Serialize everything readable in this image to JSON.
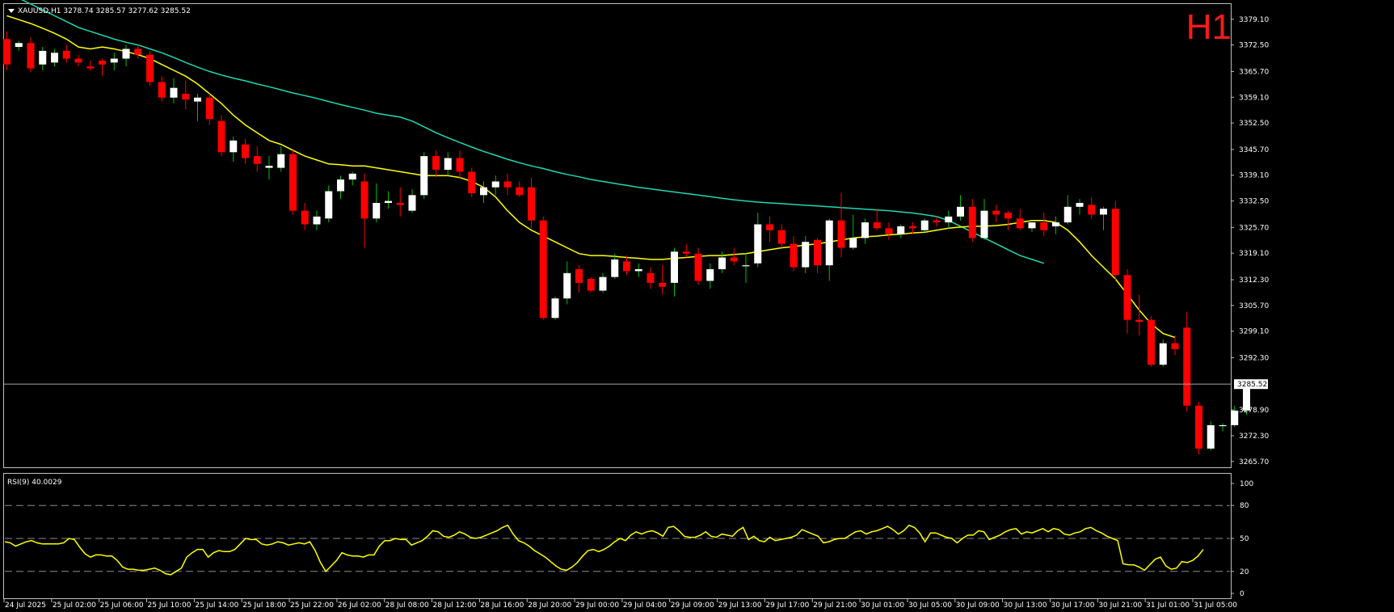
{
  "header": {
    "symbol_line": "XAUUSD,H1  3278.74 3285.57 3277.62 3285.52",
    "timeframe_badge": "H1",
    "current_price_label": "3285.52"
  },
  "colors": {
    "background": "#000000",
    "bull_body": "#ffffff",
    "bear_body": "#ff0000",
    "wick_bull": "#00c000",
    "wick_bear": "#ff0000",
    "ma_fast": "#ffff00",
    "ma_slow": "#20d8b0",
    "rsi": "#ffff00",
    "grid_dash": "#8c8c8c",
    "frame": "#c0c0c0",
    "badge": "#ff1a1a"
  },
  "chart_data": [
    {
      "type": "candlestick",
      "symbol": "XAUUSD",
      "timeframe": "H1",
      "ohlc_last": {
        "open": 3278.74,
        "high": 3285.57,
        "low": 3277.62,
        "close": 3285.52
      },
      "ylim": [
        3264.2,
        3383.0
      ],
      "y_ticks": [
        "3379.10",
        "3372.50",
        "3365.70",
        "3359.10",
        "3352.50",
        "3345.70",
        "3339.10",
        "3332.50",
        "3325.70",
        "3319.10",
        "3312.30",
        "3305.70",
        "3299.10",
        "3292.30",
        "3285.52",
        "3278.90",
        "3272.30",
        "3265.70"
      ],
      "current_price": 3285.52,
      "x_tick_labels": [
        "24 Jul 2025",
        "25 Jul 02:00",
        "25 Jul 06:00",
        "25 Jul 10:00",
        "25 Jul 14:00",
        "25 Jul 18:00",
        "25 Jul 22:00",
        "26 Jul 02:00",
        "28 Jul 08:00",
        "28 Jul 12:00",
        "28 Jul 16:00",
        "28 Jul 20:00",
        "29 Jul 00:00",
        "29 Jul 04:00",
        "29 Jul 09:00",
        "29 Jul 13:00",
        "29 Jul 17:00",
        "29 Jul 21:00",
        "30 Jul 01:00",
        "30 Jul 05:00",
        "30 Jul 09:00",
        "30 Jul 13:00",
        "30 Jul 17:00",
        "30 Jul 21:00",
        "31 Jul 01:00",
        "31 Jul 05:00"
      ],
      "candles": [
        [
          3374.0,
          3376.0,
          3366.0,
          3367.5
        ],
        [
          3372.0,
          3373.5,
          3371.0,
          3373.0
        ],
        [
          3373.0,
          3374.5,
          3365.5,
          3366.5
        ],
        [
          3367.5,
          3372.0,
          3366.0,
          3371.0
        ],
        [
          3368.0,
          3371.5,
          3367.0,
          3370.5
        ],
        [
          3371.0,
          3372.5,
          3368.0,
          3369.0
        ],
        [
          3369.0,
          3370.0,
          3367.0,
          3368.0
        ],
        [
          3367.0,
          3368.5,
          3366.0,
          3366.5
        ],
        [
          3368.5,
          3369.0,
          3364.5,
          3367.5
        ],
        [
          3368.0,
          3370.5,
          3366.0,
          3369.0
        ],
        [
          3369.0,
          3372.5,
          3367.0,
          3371.5
        ],
        [
          3371.5,
          3372.5,
          3369.0,
          3370.0
        ],
        [
          3370.0,
          3371.0,
          3362.0,
          3363.0
        ],
        [
          3363.0,
          3364.5,
          3358.0,
          3359.0
        ],
        [
          3359.0,
          3364.0,
          3357.5,
          3361.5
        ],
        [
          3360.0,
          3363.5,
          3356.0,
          3358.5
        ],
        [
          3358.0,
          3360.0,
          3353.0,
          3359.0
        ],
        [
          3359.0,
          3360.0,
          3352.0,
          3353.5
        ],
        [
          3353.0,
          3354.5,
          3344.0,
          3345.0
        ],
        [
          3345.0,
          3349.0,
          3342.5,
          3348.0
        ],
        [
          3347.0,
          3348.5,
          3342.0,
          3343.5
        ],
        [
          3344.0,
          3346.5,
          3340.0,
          3342.0
        ],
        [
          3341.0,
          3344.0,
          3338.0,
          3341.5
        ],
        [
          3341.0,
          3346.5,
          3340.0,
          3344.5
        ],
        [
          3344.5,
          3345.5,
          3329.0,
          3330.0
        ],
        [
          3330.0,
          3332.0,
          3325.0,
          3326.5
        ],
        [
          3326.5,
          3330.0,
          3325.0,
          3328.5
        ],
        [
          3328.0,
          3336.5,
          3327.0,
          3335.0
        ],
        [
          3335.0,
          3339.0,
          3333.0,
          3338.0
        ],
        [
          3338.0,
          3340.0,
          3336.5,
          3339.5
        ],
        [
          3337.5,
          3339.5,
          3320.5,
          3328.0
        ],
        [
          3328.0,
          3337.0,
          3327.0,
          3332.0
        ],
        [
          3332.0,
          3335.0,
          3330.5,
          3332.5
        ],
        [
          3332.0,
          3336.0,
          3328.5,
          3331.5
        ],
        [
          3330.0,
          3335.5,
          3329.5,
          3334.0
        ],
        [
          3334.0,
          3345.0,
          3333.0,
          3344.0
        ],
        [
          3344.0,
          3345.5,
          3338.5,
          3340.5
        ],
        [
          3340.5,
          3345.0,
          3339.0,
          3343.5
        ],
        [
          3343.5,
          3345.5,
          3338.5,
          3340.0
        ],
        [
          3340.0,
          3341.0,
          3333.5,
          3334.5
        ],
        [
          3334.0,
          3337.5,
          3332.0,
          3336.0
        ],
        [
          3336.0,
          3339.0,
          3334.0,
          3337.5
        ],
        [
          3337.5,
          3339.5,
          3334.0,
          3336.0
        ],
        [
          3336.0,
          3337.5,
          3333.5,
          3334.0
        ],
        [
          3336.0,
          3338.5,
          3325.5,
          3327.5
        ],
        [
          3327.5,
          3328.5,
          3302.0,
          3302.5
        ],
        [
          3302.5,
          3308.0,
          3302.0,
          3307.5
        ],
        [
          3307.5,
          3317.0,
          3306.0,
          3314.0
        ],
        [
          3315.0,
          3316.0,
          3309.0,
          3311.5
        ],
        [
          3312.5,
          3313.0,
          3309.0,
          3309.5
        ],
        [
          3309.5,
          3314.0,
          3309.0,
          3313.0
        ],
        [
          3313.0,
          3319.0,
          3312.5,
          3317.5
        ],
        [
          3317.0,
          3318.5,
          3313.5,
          3314.5
        ],
        [
          3314.5,
          3316.5,
          3313.0,
          3315.0
        ],
        [
          3314.0,
          3315.5,
          3310.0,
          3311.5
        ],
        [
          3311.5,
          3316.0,
          3308.5,
          3310.5
        ],
        [
          3311.5,
          3320.5,
          3308.0,
          3319.5
        ],
        [
          3319.5,
          3321.5,
          3318.0,
          3319.0
        ],
        [
          3319.0,
          3320.5,
          3311.0,
          3312.0
        ],
        [
          3312.0,
          3316.5,
          3310.0,
          3315.0
        ],
        [
          3315.0,
          3319.5,
          3314.0,
          3318.0
        ],
        [
          3318.0,
          3320.5,
          3316.0,
          3317.0
        ],
        [
          3316.0,
          3319.0,
          3311.5,
          3316.0
        ],
        [
          3316.5,
          3329.5,
          3315.5,
          3326.5
        ],
        [
          3326.5,
          3328.5,
          3322.0,
          3325.0
        ],
        [
          3325.0,
          3326.5,
          3320.5,
          3321.5
        ],
        [
          3321.5,
          3323.5,
          3314.5,
          3315.5
        ],
        [
          3315.5,
          3323.5,
          3314.0,
          3322.0
        ],
        [
          3322.5,
          3323.0,
          3314.0,
          3316.0
        ],
        [
          3316.0,
          3328.0,
          3312.0,
          3327.5
        ],
        [
          3327.5,
          3334.5,
          3318.0,
          3320.5
        ],
        [
          3320.5,
          3329.0,
          3320.0,
          3323.0
        ],
        [
          3323.0,
          3328.0,
          3321.5,
          3327.0
        ],
        [
          3327.0,
          3330.5,
          3325.0,
          3325.5
        ],
        [
          3325.5,
          3327.0,
          3322.5,
          3324.0
        ],
        [
          3324.0,
          3326.5,
          3323.0,
          3326.0
        ],
        [
          3326.0,
          3327.0,
          3324.0,
          3325.5
        ],
        [
          3325.0,
          3328.0,
          3324.5,
          3327.5
        ],
        [
          3327.5,
          3328.5,
          3326.0,
          3327.0
        ],
        [
          3327.0,
          3330.0,
          3325.5,
          3328.5
        ],
        [
          3328.5,
          3334.0,
          3327.5,
          3331.0
        ],
        [
          3331.0,
          3333.0,
          3322.0,
          3323.0
        ],
        [
          3323.0,
          3333.0,
          3322.5,
          3330.0
        ],
        [
          3330.0,
          3331.5,
          3327.0,
          3329.0
        ],
        [
          3329.5,
          3330.0,
          3325.0,
          3328.0
        ],
        [
          3328.0,
          3330.5,
          3325.0,
          3325.5
        ],
        [
          3325.5,
          3327.0,
          3324.5,
          3327.0
        ],
        [
          3327.0,
          3329.5,
          3323.5,
          3325.0
        ],
        [
          3326.0,
          3328.5,
          3324.0,
          3327.0
        ],
        [
          3327.0,
          3334.0,
          3326.5,
          3331.0
        ],
        [
          3331.0,
          3333.0,
          3329.0,
          3332.0
        ],
        [
          3331.5,
          3333.5,
          3328.0,
          3329.0
        ],
        [
          3329.0,
          3331.0,
          3325.0,
          3330.5
        ],
        [
          3330.5,
          3332.5,
          3312.0,
          3313.5
        ],
        [
          3313.5,
          3315.0,
          3298.5,
          3302.0
        ],
        [
          3302.0,
          3308.5,
          3298.0,
          3301.5
        ],
        [
          3302.0,
          3303.0,
          3290.0,
          3290.5
        ],
        [
          3290.5,
          3297.0,
          3290.0,
          3296.0
        ],
        [
          3296.0,
          3298.0,
          3293.0,
          3294.5
        ],
        [
          3300.0,
          3304.0,
          3278.5,
          3280.0
        ],
        [
          3280.0,
          3281.0,
          3267.5,
          3269.0
        ],
        [
          3269.0,
          3276.0,
          3268.5,
          3275.0
        ],
        [
          3275.0,
          3275.5,
          3273.5,
          3275.0
        ],
        [
          3275.0,
          3280.0,
          3274.5,
          3278.74
        ],
        [
          3278.74,
          3285.57,
          3277.62,
          3285.52
        ]
      ],
      "ma_fast": [
        3380.0,
        3379.0,
        3378.0,
        3376.8,
        3375.5,
        3374.0,
        3372.0,
        3371.5,
        3372.0,
        3371.5,
        3370.8,
        3370.0,
        3369.0,
        3367.5,
        3366.0,
        3364.5,
        3362.5,
        3360.0,
        3357.5,
        3354.5,
        3352.0,
        3350.0,
        3348.0,
        3347.0,
        3345.5,
        3344.0,
        3343.0,
        3342.0,
        3341.8,
        3341.5,
        3341.5,
        3341.0,
        3340.5,
        3340.0,
        3339.5,
        3339.0,
        3339.0,
        3339.0,
        3338.5,
        3337.5,
        3336.0,
        3333.5,
        3330.0,
        3327.0,
        3325.0,
        3323.5,
        3322.0,
        3320.5,
        3319.0,
        3318.5,
        3318.5,
        3318.3,
        3318.0,
        3317.8,
        3317.5,
        3317.5,
        3317.8,
        3318.0,
        3318.3,
        3318.5,
        3318.5,
        3318.8,
        3319.0,
        3319.5,
        3320.0,
        3320.5,
        3320.8,
        3321.2,
        3321.5,
        3322.0,
        3322.5,
        3323.0,
        3323.3,
        3323.5,
        3323.8,
        3324.0,
        3324.3,
        3324.5,
        3325.0,
        3325.5,
        3325.8,
        3326.0,
        3326.0,
        3326.2,
        3326.5,
        3327.0,
        3327.5,
        3327.5,
        3327.0,
        3325.0,
        3322.0,
        3318.5,
        3315.5,
        3312.5,
        3308.5,
        3304.5,
        3301.0,
        3298.5,
        3297.5
      ],
      "ma_slow": [
        3385.5,
        3384.5,
        3383.0,
        3381.5,
        3380.0,
        3378.5,
        3377.0,
        3376.0,
        3375.0,
        3374.0,
        3373.2,
        3372.5,
        3371.5,
        3370.5,
        3369.3,
        3368.0,
        3366.8,
        3365.7,
        3364.8,
        3364.0,
        3363.3,
        3362.5,
        3361.8,
        3361.0,
        3360.2,
        3359.5,
        3358.8,
        3358.0,
        3357.2,
        3356.5,
        3355.8,
        3355.0,
        3354.5,
        3354.0,
        3353.0,
        3351.5,
        3350.0,
        3348.7,
        3347.5,
        3346.3,
        3345.2,
        3344.2,
        3343.2,
        3342.3,
        3341.5,
        3340.8,
        3340.0,
        3339.3,
        3338.7,
        3338.0,
        3337.5,
        3337.0,
        3336.5,
        3336.0,
        3335.6,
        3335.2,
        3334.8,
        3334.4,
        3334.0,
        3333.6,
        3333.2,
        3332.8,
        3332.5,
        3332.2,
        3332.0,
        3331.8,
        3331.6,
        3331.4,
        3331.2,
        3331.0,
        3330.8,
        3330.6,
        3330.4,
        3330.2,
        3330.0,
        3329.7,
        3329.4,
        3329.0,
        3328.5,
        3327.5,
        3326.0,
        3324.5,
        3323.0,
        3321.5,
        3320.0,
        3318.5,
        3317.5,
        3316.5
      ],
      "series_names": []
    },
    {
      "type": "line",
      "title": "RSI(9) 40.0029",
      "ylim": [
        0,
        100
      ],
      "y_ticks": [
        100,
        80,
        50,
        20,
        0
      ],
      "levels": [
        80,
        50,
        20
      ],
      "series": [
        {
          "values": [
            47,
            46,
            43,
            45,
            47,
            48,
            46,
            45,
            45,
            45,
            45,
            46,
            50,
            49,
            42,
            36,
            33,
            35,
            35,
            34,
            34,
            30,
            24,
            22,
            22,
            21,
            21,
            22,
            23,
            21,
            18,
            17,
            20,
            23,
            33,
            37,
            40,
            40,
            33,
            37,
            39,
            38,
            38,
            40,
            45,
            50,
            49,
            49,
            45,
            44,
            45,
            47,
            46,
            44,
            45,
            46,
            45,
            47,
            39,
            28,
            20,
            25,
            30,
            37,
            35,
            34,
            34,
            33,
            35,
            35,
            43,
            48,
            48,
            50,
            49,
            49,
            44,
            46,
            48,
            52,
            57,
            56,
            52,
            51,
            53,
            56,
            54,
            51,
            50,
            51,
            53,
            55,
            57,
            60,
            62,
            54,
            48,
            46,
            43,
            39,
            36,
            33,
            29,
            25,
            22,
            21,
            24,
            28,
            34,
            39,
            40,
            38,
            40,
            43,
            47,
            50,
            48,
            53,
            56,
            54,
            56,
            57,
            55,
            52,
            60,
            61,
            57,
            52,
            51,
            51,
            53,
            56,
            52,
            51,
            54,
            53,
            52,
            57,
            60,
            49,
            52,
            48,
            47,
            51,
            48,
            49,
            50,
            51,
            53,
            58,
            56,
            54,
            52,
            46,
            47,
            49,
            50,
            50,
            53,
            56,
            57,
            54,
            56,
            57,
            59,
            61,
            58,
            54,
            57,
            62,
            60,
            55,
            47,
            55,
            55,
            53,
            51,
            50,
            46,
            50,
            53,
            53,
            57,
            56,
            49,
            51,
            53,
            56,
            58,
            59,
            54,
            56,
            55,
            57,
            59,
            56,
            59,
            58,
            54,
            53,
            55,
            56,
            59,
            60,
            57,
            55,
            52,
            50,
            48,
            27,
            26,
            26,
            24,
            21,
            26,
            31,
            33,
            25,
            22,
            23,
            29,
            28,
            30,
            34,
            40
          ]
        }
      ]
    }
  ]
}
